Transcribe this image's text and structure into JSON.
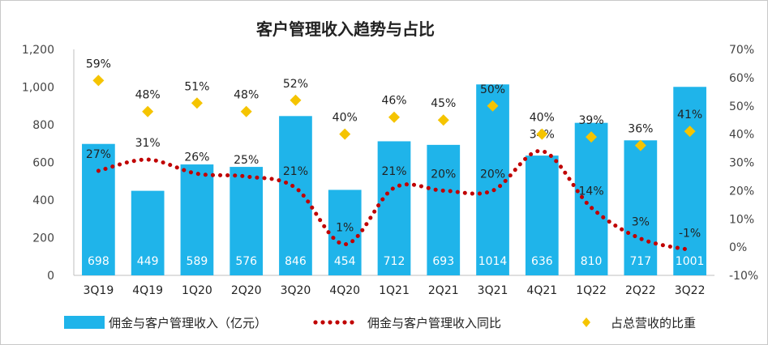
{
  "chart_data": {
    "type": "bar",
    "title": "客户管理收入趋势与占比",
    "categories": [
      "3Q19",
      "4Q19",
      "1Q20",
      "2Q20",
      "3Q20",
      "4Q20",
      "1Q21",
      "2Q21",
      "3Q21",
      "4Q21",
      "1Q22",
      "2Q22",
      "3Q22"
    ],
    "series": [
      {
        "name": "佣金与客户管理收入（亿元）",
        "type": "bar",
        "axis": "left",
        "color": "#1fb4ea",
        "values": [
          698,
          449,
          589,
          576,
          846,
          454,
          712,
          693,
          1014,
          636,
          810,
          717,
          1001
        ],
        "labels": [
          "698",
          "449",
          "589",
          "576",
          "846",
          "454",
          "712",
          "693",
          "1014",
          "636",
          "810",
          "717",
          "1001"
        ]
      },
      {
        "name": "佣金与客户管理收入同比",
        "type": "line",
        "style": "dotted",
        "axis": "right",
        "color": "#c00000",
        "values": [
          27,
          31,
          26,
          25,
          21,
          1,
          21,
          20,
          20,
          34,
          14,
          3,
          -1
        ],
        "labels": [
          "27%",
          "31%",
          "26%",
          "25%",
          "21%",
          "1%",
          "21%",
          "20%",
          "20%",
          "34%",
          "14%",
          "3%",
          "-1%"
        ]
      },
      {
        "name": "占总营收的比重",
        "type": "scatter",
        "marker": "diamond",
        "axis": "right",
        "color": "#f5c400",
        "values": [
          59,
          48,
          51,
          48,
          52,
          40,
          46,
          45,
          50,
          40,
          39,
          36,
          41
        ],
        "labels": [
          "59%",
          "48%",
          "51%",
          "48%",
          "52%",
          "40%",
          "46%",
          "45%",
          "50%",
          "40%",
          "39%",
          "36%",
          "41%"
        ]
      }
    ],
    "left_axis": {
      "min": 0,
      "max": 1200,
      "step": 200,
      "tick_labels": [
        "0",
        "200",
        "400",
        "600",
        "800",
        "1,000",
        "1,200"
      ]
    },
    "right_axis": {
      "min": -10,
      "max": 70,
      "step": 10,
      "tick_labels": [
        "-10%",
        "0%",
        "10%",
        "20%",
        "30%",
        "40%",
        "50%",
        "60%",
        "70%"
      ]
    },
    "grid": false,
    "legend": "bottom"
  }
}
